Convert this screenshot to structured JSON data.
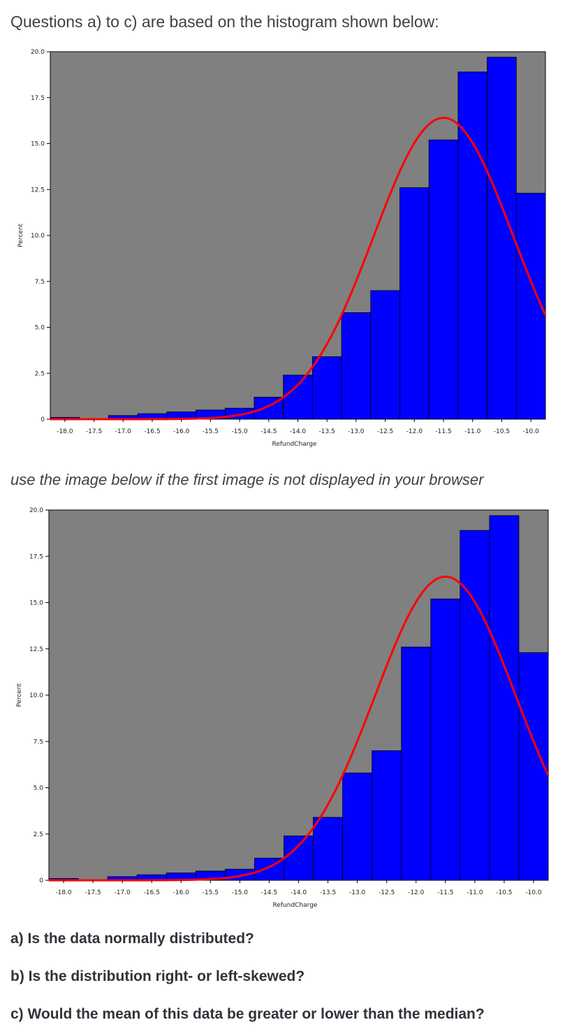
{
  "intro": "Questions a) to c) are based on the histogram shown below:",
  "fallback_note": "use the image below if the first image is not displayed in your browser",
  "questions": {
    "a": "a) Is the data normally distributed?",
    "b": "b) Is the distribution right- or left-skewed?",
    "c": "c) Would the mean of this data be greater or lower than the median?"
  },
  "chart_data": [
    {
      "type": "bar",
      "xlabel": "RefundCharge",
      "ylabel": "Percent",
      "xlim": [
        -18.25,
        -9.75
      ],
      "ylim": [
        0,
        20
      ],
      "x_ticks": [
        "-18.0",
        "-17.5",
        "-17.0",
        "-16.5",
        "-16.0",
        "-15.5",
        "-15.0",
        "-14.5",
        "-14.0",
        "-13.5",
        "-13.0",
        "-12.5",
        "-12.0",
        "-11.5",
        "-11.0",
        "-10.5",
        "-10.0"
      ],
      "y_ticks": [
        "0",
        "2.5",
        "5.0",
        "7.5",
        "10.0",
        "12.5",
        "15.0",
        "17.5",
        "20.0"
      ],
      "bin_centers": [
        -18.0,
        -17.5,
        -17.0,
        -16.5,
        -16.0,
        -15.5,
        -15.0,
        -14.5,
        -14.0,
        -13.5,
        -13.0,
        -12.5,
        -12.0,
        -11.5,
        -11.0,
        -10.5,
        -10.0
      ],
      "values": [
        0.1,
        0.0,
        0.2,
        0.3,
        0.4,
        0.5,
        0.6,
        1.2,
        2.4,
        3.4,
        5.8,
        7.0,
        12.6,
        15.2,
        18.9,
        19.7,
        12.3
      ],
      "overlay": {
        "type": "normal-curve",
        "mean": -11.5,
        "sd": 1.2,
        "peak_percent": 16.4
      },
      "colors": {
        "plot_background": "#808080",
        "bars": "#0000ff",
        "bar_edges": "#000000",
        "curve": "#ff0000"
      }
    },
    {
      "type": "bar",
      "xlabel": "RefundCharge",
      "ylabel": "Percent",
      "xlim": [
        -18.25,
        -9.75
      ],
      "ylim": [
        0,
        20
      ],
      "x_ticks": [
        "-18.0",
        "-17.5",
        "-17.0",
        "-16.5",
        "-16.0",
        "-15.5",
        "-15.0",
        "-14.5",
        "-14.0",
        "-13.5",
        "-13.0",
        "-12.5",
        "-12.0",
        "-11.5",
        "-11.0",
        "-10.5",
        "-10.0"
      ],
      "y_ticks": [
        "0",
        "2.5",
        "5.0",
        "7.5",
        "10.0",
        "12.5",
        "15.0",
        "17.5",
        "20.0"
      ],
      "bin_centers": [
        -18.0,
        -17.5,
        -17.0,
        -16.5,
        -16.0,
        -15.5,
        -15.0,
        -14.5,
        -14.0,
        -13.5,
        -13.0,
        -12.5,
        -12.0,
        -11.5,
        -11.0,
        -10.5,
        -10.0
      ],
      "values": [
        0.1,
        0.0,
        0.2,
        0.3,
        0.4,
        0.5,
        0.6,
        1.2,
        2.4,
        3.4,
        5.8,
        7.0,
        12.6,
        15.2,
        18.9,
        19.7,
        12.3
      ],
      "overlay": {
        "type": "normal-curve",
        "mean": -11.5,
        "sd": 1.2,
        "peak_percent": 16.4
      },
      "colors": {
        "plot_background": "#808080",
        "bars": "#0000ff",
        "bar_edges": "#000000",
        "curve": "#ff0000"
      }
    }
  ]
}
